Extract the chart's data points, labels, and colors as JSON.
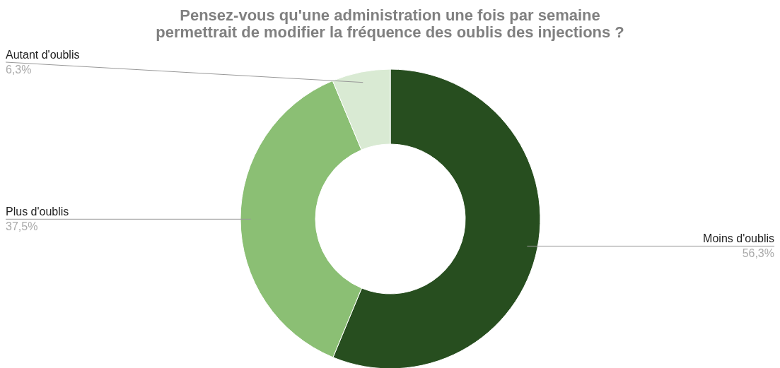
{
  "chart_data": {
    "type": "donut",
    "title": [
      "Pensez-vous qu'une administration une fois par semaine",
      "permettrait de modifier la fréquence des oublis des injections ?"
    ],
    "categories": [
      "Moins d'oublis",
      "Plus d'oublis",
      "Autant d'oublis"
    ],
    "values": [
      56.3,
      37.5,
      6.3
    ],
    "colors": [
      "#274e1f",
      "#8bbf74",
      "#d9ead3"
    ],
    "value_labels": [
      "56,3%",
      "37,5%",
      "6,3%"
    ]
  }
}
